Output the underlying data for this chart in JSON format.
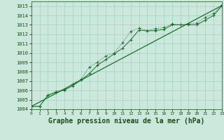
{
  "background_color": "#cce8dd",
  "grid_color": "#99ccbb",
  "line_color": "#1a6e2a",
  "xlabel": "Graphe pression niveau de la mer (hPa)",
  "xlim": [
    0,
    23
  ],
  "ylim": [
    1004,
    1015.5
  ],
  "yticks": [
    1004,
    1005,
    1006,
    1007,
    1008,
    1009,
    1010,
    1011,
    1012,
    1013,
    1014,
    1015
  ],
  "xticks": [
    0,
    1,
    2,
    3,
    4,
    5,
    6,
    7,
    8,
    9,
    10,
    11,
    12,
    13,
    14,
    15,
    16,
    17,
    18,
    19,
    20,
    21,
    22,
    23
  ],
  "line1_x": [
    0,
    1,
    2,
    3,
    4,
    5,
    6,
    7,
    8,
    9,
    10,
    11,
    12,
    13,
    14,
    15,
    16,
    17,
    18,
    19,
    20,
    21,
    22,
    23
  ],
  "line1_y": [
    1004.3,
    1004.3,
    1005.5,
    1005.9,
    1006.1,
    1006.7,
    1007.2,
    1008.5,
    1009.0,
    1009.7,
    1010.0,
    1011.1,
    1012.3,
    1012.65,
    1012.4,
    1012.6,
    1012.7,
    1013.1,
    1013.0,
    1013.1,
    1013.2,
    1013.8,
    1014.2,
    1015.1
  ],
  "line2_x": [
    0,
    1,
    2,
    3,
    4,
    5,
    6,
    7,
    8,
    9,
    10,
    11,
    12,
    13,
    14,
    15,
    16,
    17,
    18,
    19,
    20,
    21,
    22,
    23
  ],
  "line2_y": [
    1004.3,
    1004.3,
    1005.5,
    1005.8,
    1006.05,
    1006.5,
    1007.1,
    1007.8,
    1008.7,
    1009.3,
    1009.9,
    1010.5,
    1011.4,
    1012.45,
    1012.35,
    1012.4,
    1012.5,
    1013.0,
    1013.0,
    1013.0,
    1013.0,
    1013.5,
    1014.0,
    1015.0
  ],
  "line3_x": [
    0,
    23
  ],
  "line3_y": [
    1004.3,
    1015.05
  ]
}
